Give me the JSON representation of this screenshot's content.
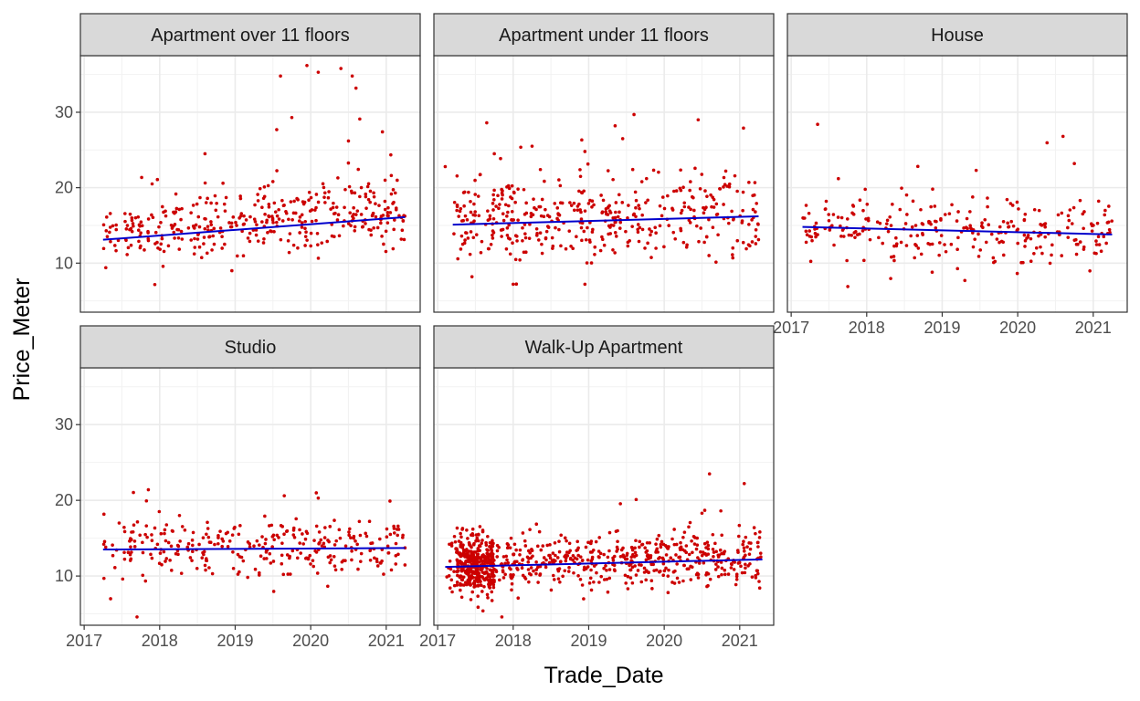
{
  "chart_data": {
    "type": "scatter",
    "facet_layout": "3 columns x 2 rows (free x-axis labels shown under bottom panel of each column)",
    "xlabel": "Trade_Date",
    "ylabel": "Price_Meter",
    "x_ticks": [
      "2017",
      "2018",
      "2019",
      "2020",
      "2021"
    ],
    "y_ticks": [
      10,
      20,
      30
    ],
    "xlim": [
      2016.95,
      2021.45
    ],
    "ylim": [
      3.5,
      37.5
    ],
    "grid": true,
    "point_color": "#CC0000",
    "trend_color": "#0000CC",
    "facet_strip_color": "#D9D9D9",
    "facets": [
      {
        "label": "Apartment over 11 floors",
        "n_points": 380,
        "x_range": [
          2017.25,
          2021.25
        ],
        "trend": {
          "x": [
            2017.25,
            2021.25
          ],
          "y": [
            13.1,
            16.1
          ]
        },
        "base": 13.8,
        "slope": 0.75,
        "spread": 2.8,
        "outliers": [
          [
            2019.95,
            36.2
          ],
          [
            2020.1,
            35.3
          ],
          [
            2020.4,
            35.8
          ],
          [
            2020.55,
            34.8
          ],
          [
            2020.6,
            33.2
          ],
          [
            2019.6,
            34.8
          ],
          [
            2019.75,
            29.3
          ],
          [
            2020.65,
            29.1
          ],
          [
            2020.95,
            27.4
          ],
          [
            2019.55,
            27.7
          ],
          [
            2018.6,
            24.5
          ],
          [
            2017.9,
            20.5
          ],
          [
            2020.5,
            26.2
          ]
        ]
      },
      {
        "label": "Apartment under 11 floors",
        "n_points": 420,
        "x_range": [
          2017.2,
          2021.25
        ],
        "trend": {
          "x": [
            2017.2,
            2021.25
          ],
          "y": [
            15.1,
            16.2
          ]
        },
        "base": 15.3,
        "slope": 0.27,
        "spread": 3.6,
        "outliers": [
          [
            2017.65,
            28.6
          ],
          [
            2019.35,
            28.2
          ],
          [
            2019.6,
            29.7
          ],
          [
            2020.45,
            29.0
          ],
          [
            2021.05,
            27.9
          ],
          [
            2019.45,
            26.5
          ],
          [
            2017.75,
            24.5
          ],
          [
            2018.25,
            25.5
          ],
          [
            2018.95,
            24.8
          ],
          [
            2017.1,
            22.8
          ],
          [
            2018.0,
            7.2
          ],
          [
            2018.95,
            7.2
          ]
        ]
      },
      {
        "label": "House",
        "n_points": 280,
        "x_range": [
          2017.15,
          2021.25
        ],
        "trend": {
          "x": [
            2017.15,
            2021.25
          ],
          "y": [
            14.8,
            13.8
          ]
        },
        "base": 14.5,
        "slope": -0.25,
        "spread": 3.0,
        "outliers": [
          [
            2017.35,
            28.4
          ],
          [
            2020.6,
            26.8
          ],
          [
            2020.75,
            23.2
          ],
          [
            2019.45,
            22.3
          ],
          [
            2017.75,
            6.9
          ],
          [
            2019.3,
            7.7
          ]
        ]
      },
      {
        "label": "Studio",
        "n_points": 300,
        "x_range": [
          2017.25,
          2021.25
        ],
        "trend": {
          "x": [
            2017.25,
            2021.25
          ],
          "y": [
            13.5,
            13.7
          ]
        },
        "base": 13.6,
        "slope": 0.05,
        "spread": 2.6,
        "outliers": [
          [
            2017.7,
            4.6
          ],
          [
            2017.85,
            21.4
          ],
          [
            2021.05,
            19.9
          ],
          [
            2019.65,
            20.6
          ],
          [
            2020.1,
            20.3
          ],
          [
            2017.35,
            7.0
          ]
        ]
      },
      {
        "label": "Walk-Up Apartment",
        "n_points": 900,
        "x_range": [
          2017.1,
          2021.3
        ],
        "trend": {
          "x": [
            2017.1,
            2021.3
          ],
          "y": [
            11.2,
            12.2
          ]
        },
        "base": 11.3,
        "slope": 0.24,
        "spread": 2.4,
        "outliers": [
          [
            2020.6,
            23.5
          ],
          [
            2017.85,
            4.6
          ],
          [
            2017.6,
            5.4
          ],
          [
            2020.5,
            18.3
          ],
          [
            2020.75,
            18.6
          ]
        ]
      }
    ]
  }
}
